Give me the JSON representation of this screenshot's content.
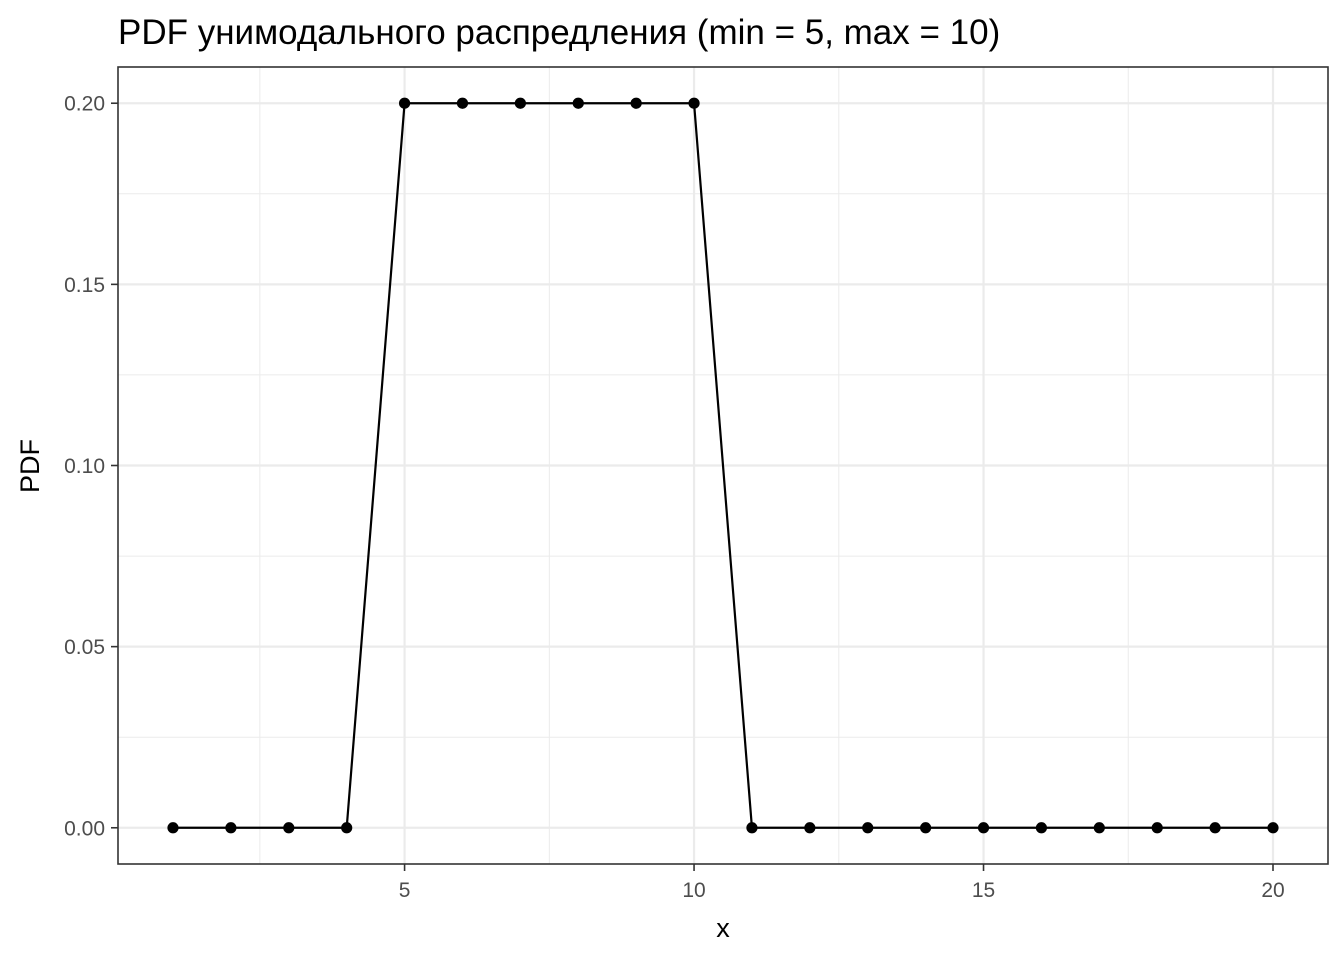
{
  "chart_data": {
    "type": "line",
    "title": "PDF унимодального распредления (min = 5, max = 10)",
    "xlabel": "x",
    "ylabel": "PDF",
    "xlim": [
      0.05,
      20.95
    ],
    "ylim": [
      -0.01,
      0.21
    ],
    "x_ticks": [
      5,
      10,
      15,
      20
    ],
    "x_tick_labels": [
      "5",
      "10",
      "15",
      "20"
    ],
    "y_ticks": [
      0,
      0.05,
      0.1,
      0.15,
      0.2
    ],
    "y_tick_labels": [
      "0.00",
      "0.05",
      "0.10",
      "0.15",
      "0.20"
    ],
    "grid": true,
    "line_color": "#000000",
    "series": [
      {
        "x": [
          1,
          2,
          3,
          4,
          5,
          6,
          7,
          8,
          9,
          10,
          11,
          12,
          13,
          14,
          15,
          16,
          17,
          18,
          19,
          20
        ],
        "values": [
          0,
          0,
          0,
          0,
          0.2,
          0.2,
          0.2,
          0.2,
          0.2,
          0.2,
          0,
          0,
          0,
          0,
          0,
          0,
          0,
          0,
          0,
          0
        ]
      }
    ]
  }
}
